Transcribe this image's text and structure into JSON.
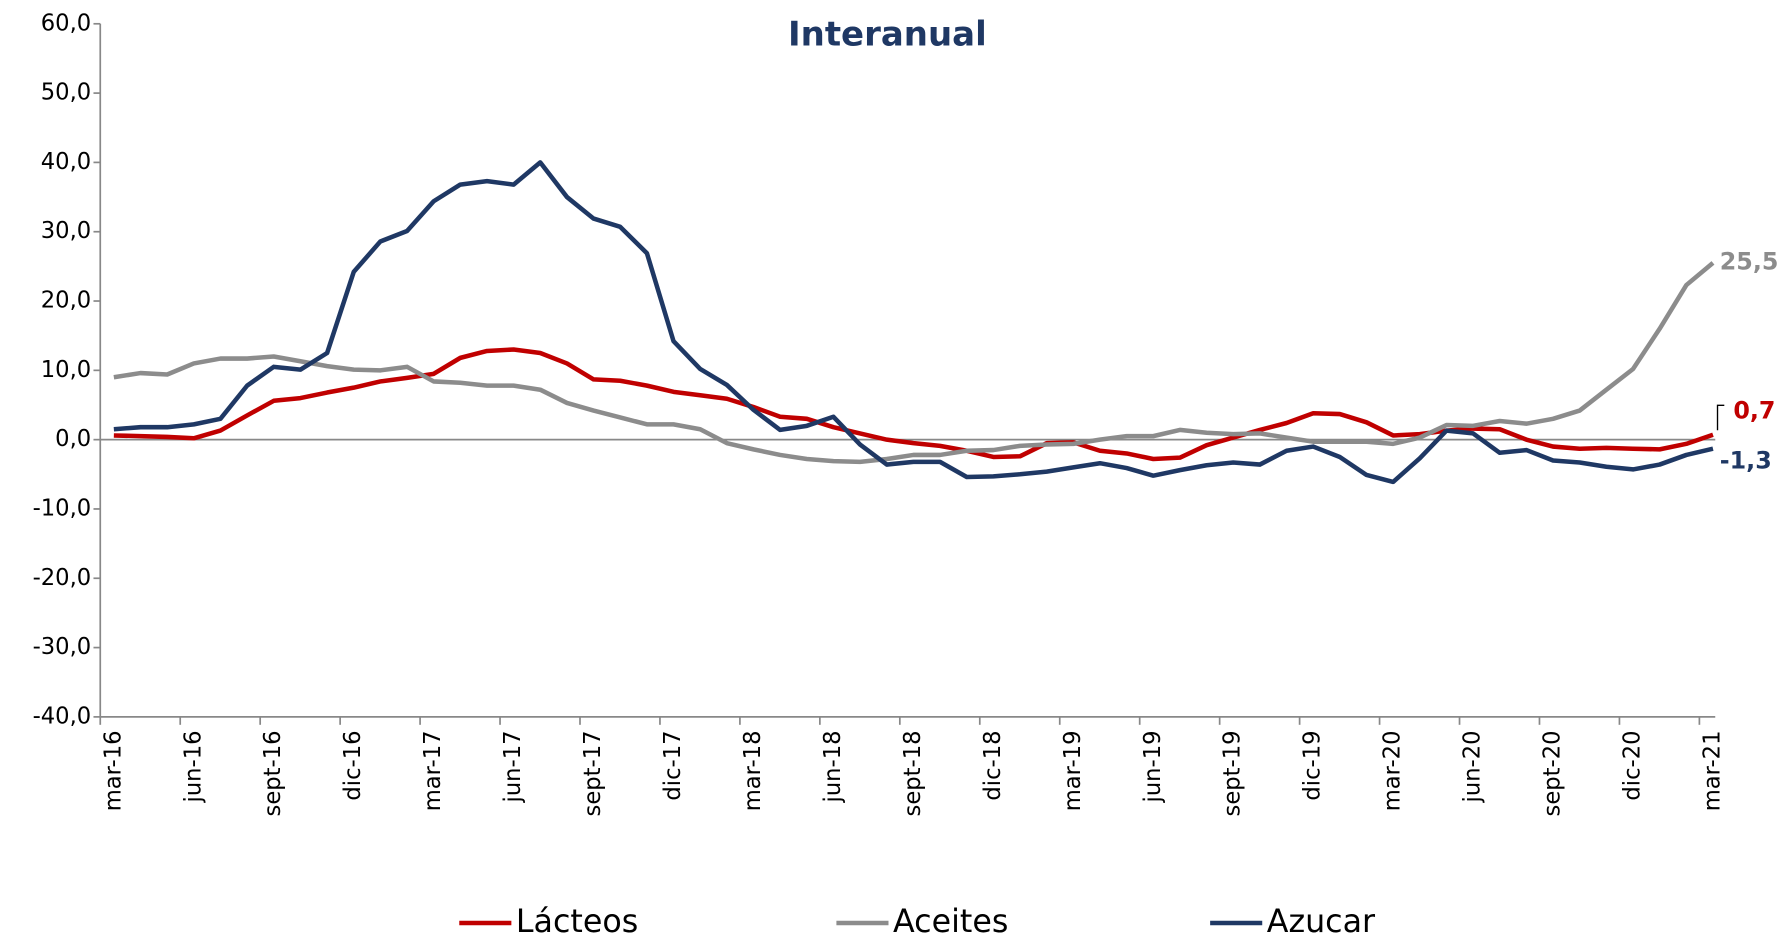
{
  "chart_data": {
    "type": "line",
    "title": "Interanual",
    "categories": [
      "mar-16",
      null,
      null,
      "jun-16",
      null,
      null,
      "sept-16",
      null,
      null,
      "dic-16",
      null,
      null,
      "mar-17",
      null,
      null,
      "jun-17",
      null,
      null,
      "sept-17",
      null,
      null,
      "dic-17",
      null,
      null,
      "mar-18",
      null,
      null,
      "jun-18",
      null,
      null,
      "sept-18",
      null,
      null,
      "dic-18",
      null,
      null,
      "mar-19",
      null,
      null,
      "jun-19",
      null,
      null,
      "sept-19",
      null,
      null,
      "dic-19",
      null,
      null,
      "mar-20",
      null,
      null,
      "jun-20",
      null,
      null,
      "sept-20",
      null,
      null,
      "dic-20",
      null,
      null,
      "mar-21"
    ],
    "series": [
      {
        "name": "Lácteos",
        "color": "#c00000",
        "values": [
          0.6,
          0.5,
          0.4,
          0.2,
          1.3,
          3.5,
          5.6,
          6.0,
          6.8,
          7.5,
          8.4,
          8.9,
          9.5,
          11.8,
          12.8,
          13.0,
          12.5,
          11.0,
          8.7,
          8.5,
          7.8,
          6.9,
          6.4,
          5.9,
          4.7,
          3.3,
          3.0,
          1.8,
          0.9,
          0.0,
          -0.5,
          -0.9,
          -1.6,
          -2.5,
          -2.4,
          -0.5,
          -0.4,
          -1.6,
          -2.0,
          -2.8,
          -2.6,
          -0.8,
          0.3,
          1.4,
          2.4,
          3.8,
          3.7,
          2.5,
          0.6,
          0.8,
          1.3,
          1.6,
          1.5,
          0.0,
          -1.0,
          -1.3,
          -1.2,
          -1.3,
          -1.4,
          -0.6,
          0.7
        ],
        "value_labels": [
          null,
          null,
          null,
          null,
          null,
          null,
          null,
          null,
          null,
          null,
          null,
          null,
          null,
          null,
          null,
          null,
          null,
          null,
          null,
          null,
          null,
          null,
          null,
          null,
          null,
          null,
          null,
          null,
          null,
          null,
          null,
          null,
          null,
          null,
          null,
          null,
          null,
          null,
          null,
          null,
          null,
          null,
          null,
          null,
          null,
          null,
          null,
          null,
          null,
          null,
          null,
          null,
          null,
          null,
          null,
          null,
          null,
          null,
          null,
          null,
          "0,7"
        ]
      },
      {
        "name": "Aceites",
        "color": "#8c8c8c",
        "values": [
          9.0,
          9.6,
          9.4,
          11.0,
          11.7,
          11.7,
          12.0,
          11.3,
          10.6,
          10.1,
          10.0,
          10.5,
          8.4,
          8.2,
          7.8,
          7.8,
          7.2,
          5.3,
          4.2,
          3.2,
          2.2,
          2.2,
          1.5,
          -0.5,
          -1.4,
          -2.2,
          -2.8,
          -3.1,
          -3.2,
          -2.8,
          -2.2,
          -2.2,
          -1.6,
          -1.5,
          -0.9,
          -0.7,
          -0.6,
          0.0,
          0.5,
          0.5,
          1.4,
          1.0,
          0.8,
          0.9,
          0.3,
          -0.3,
          -0.3,
          -0.3,
          -0.6,
          0.3,
          2.1,
          2.0,
          2.7,
          2.3,
          3.0,
          4.2,
          7.2,
          10.2,
          16.0,
          22.3,
          25.5
        ],
        "value_labels": [
          null,
          null,
          null,
          null,
          null,
          null,
          null,
          null,
          null,
          null,
          null,
          null,
          null,
          null,
          null,
          null,
          null,
          null,
          null,
          null,
          null,
          null,
          null,
          null,
          null,
          null,
          null,
          null,
          null,
          null,
          null,
          null,
          null,
          null,
          null,
          null,
          null,
          null,
          null,
          null,
          null,
          null,
          null,
          null,
          null,
          null,
          null,
          null,
          null,
          null,
          null,
          null,
          null,
          null,
          null,
          null,
          null,
          null,
          null,
          null,
          "25,5"
        ]
      },
      {
        "name": "Azucar",
        "color": "#1f3864",
        "values": [
          1.5,
          1.8,
          1.8,
          2.2,
          3.0,
          7.8,
          10.5,
          10.1,
          12.5,
          24.2,
          28.6,
          30.1,
          34.4,
          36.8,
          37.3,
          36.8,
          40.0,
          35.0,
          31.9,
          30.7,
          26.9,
          14.2,
          10.2,
          7.9,
          4.3,
          1.4,
          2.0,
          3.3,
          -0.7,
          -3.6,
          -3.2,
          -3.2,
          -5.4,
          -5.3,
          -5.0,
          -4.6,
          -4.0,
          -3.4,
          -4.1,
          -5.2,
          -4.4,
          -3.7,
          -3.3,
          -3.6,
          -1.6,
          -1.0,
          -2.5,
          -5.1,
          -6.1,
          -2.7,
          1.3,
          0.9,
          -1.9,
          -1.5,
          -3.0,
          -3.3,
          -3.9,
          -4.3,
          -3.6,
          -2.2,
          -1.3
        ],
        "value_labels": [
          null,
          null,
          null,
          null,
          null,
          null,
          null,
          null,
          null,
          null,
          null,
          null,
          null,
          null,
          null,
          null,
          null,
          null,
          null,
          null,
          null,
          null,
          null,
          null,
          null,
          null,
          null,
          null,
          null,
          null,
          null,
          null,
          null,
          null,
          null,
          null,
          null,
          null,
          null,
          null,
          null,
          null,
          null,
          null,
          null,
          null,
          null,
          null,
          null,
          null,
          null,
          null,
          null,
          null,
          null,
          null,
          null,
          null,
          null,
          null,
          "-1,3"
        ]
      }
    ],
    "ylim": [
      -40,
      60
    ],
    "yticks": [
      {
        "value": -40,
        "label": "-40,0"
      },
      {
        "value": -30,
        "label": "-30,0"
      },
      {
        "value": -20,
        "label": "-20,0"
      },
      {
        "value": -10,
        "label": "-10,0"
      },
      {
        "value": 0,
        "label": "0,0"
      },
      {
        "value": 10,
        "label": "10,0"
      },
      {
        "value": 20,
        "label": "20,0"
      },
      {
        "value": 30,
        "label": "30,0"
      },
      {
        "value": 40,
        "label": "40,0"
      },
      {
        "value": 50,
        "label": "50,0"
      },
      {
        "value": 60,
        "label": "60,0"
      }
    ],
    "legend": "bottom"
  }
}
